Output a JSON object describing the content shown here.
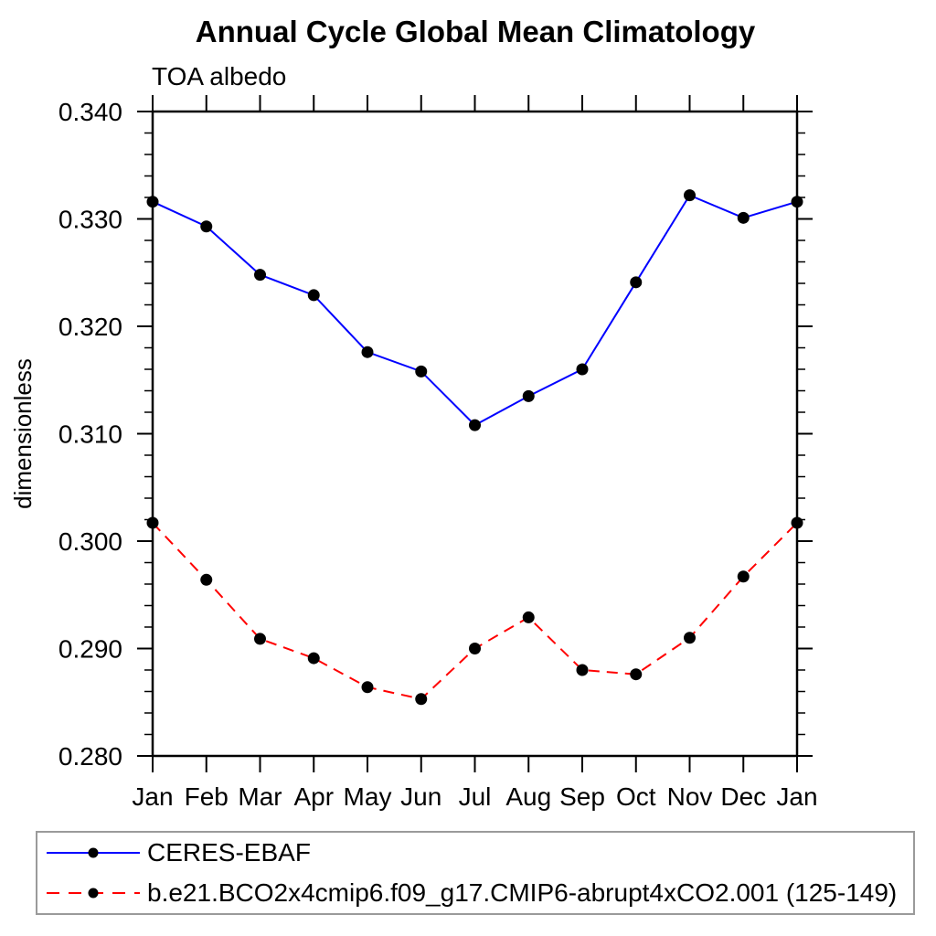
{
  "chart_data": {
    "type": "line",
    "title": "Annual Cycle Global Mean Climatology",
    "subtitle": "TOA albedo",
    "ylabel": "dimensionless",
    "xlabel": "",
    "categories": [
      "Jan",
      "Feb",
      "Mar",
      "Apr",
      "May",
      "Jun",
      "Jul",
      "Aug",
      "Sep",
      "Oct",
      "Nov",
      "Dec",
      "Jan"
    ],
    "ylim": [
      0.28,
      0.34
    ],
    "y_major_step": 0.01,
    "y_minor_step": 0.002,
    "y_tick_decimals": 3,
    "grid": false,
    "legend_position": "bottom",
    "axis_color": "#000000",
    "marker_color": "#000000",
    "series": [
      {
        "name": "CERES-EBAF",
        "color": "#0000ff",
        "style": "solid",
        "marker": "circle",
        "values": [
          0.3316,
          0.3293,
          0.3248,
          0.3229,
          0.3176,
          0.3158,
          0.3108,
          0.3135,
          0.316,
          0.3241,
          0.3322,
          0.3301,
          0.3316
        ]
      },
      {
        "name": "b.e21.BCO2x4cmip6.f09_g17.CMIP6-abrupt4xCO2.001 (125-149)",
        "color": "#ff0000",
        "style": "dashed",
        "marker": "circle",
        "values": [
          0.3017,
          0.2964,
          0.2909,
          0.2891,
          0.2864,
          0.2853,
          0.29,
          0.2929,
          0.288,
          0.2876,
          0.291,
          0.2967,
          0.3017
        ]
      }
    ]
  }
}
